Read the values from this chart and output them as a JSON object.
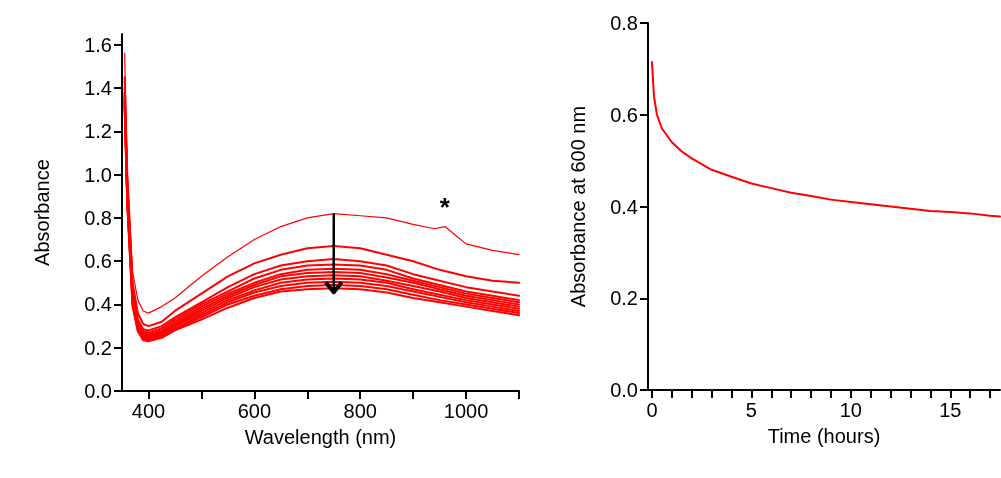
{
  "chart_data": [
    {
      "type": "line",
      "xlabel": "Wavelength (nm)",
      "ylabel": "Absorbance",
      "x": [
        355,
        360,
        370,
        380,
        390,
        400,
        425,
        450,
        500,
        550,
        600,
        650,
        700,
        750,
        800,
        850,
        900,
        950,
        1000,
        1050,
        1100
      ],
      "series": [
        {
          "color": "#ff0000",
          "x": [
            355,
            360,
            370,
            380,
            390,
            400,
            425,
            450,
            500,
            550,
            600,
            650,
            700,
            750,
            800,
            850,
            900,
            940,
            960,
            980,
            1000,
            1050,
            1100
          ],
          "values": [
            1.56,
            1.0,
            0.55,
            0.42,
            0.37,
            0.36,
            0.39,
            0.43,
            0.53,
            0.62,
            0.7,
            0.76,
            0.8,
            0.82,
            0.81,
            0.8,
            0.77,
            0.75,
            0.76,
            0.72,
            0.68,
            0.65,
            0.63
          ]
        },
        {
          "color": "#ff0000",
          "values": [
            1.45,
            1.0,
            0.5,
            0.36,
            0.31,
            0.3,
            0.32,
            0.37,
            0.45,
            0.53,
            0.59,
            0.63,
            0.66,
            0.67,
            0.66,
            0.63,
            0.6,
            0.56,
            0.53,
            0.51,
            0.5
          ]
        },
        {
          "color": "#ff0000",
          "values": [
            1.4,
            0.95,
            0.47,
            0.33,
            0.285,
            0.28,
            0.3,
            0.34,
            0.41,
            0.48,
            0.54,
            0.58,
            0.6,
            0.61,
            0.6,
            0.58,
            0.54,
            0.51,
            0.48,
            0.46,
            0.44
          ]
        },
        {
          "color": "#ff0000",
          "values": [
            1.38,
            0.93,
            0.46,
            0.32,
            0.275,
            0.27,
            0.29,
            0.33,
            0.4,
            0.46,
            0.52,
            0.56,
            0.58,
            0.585,
            0.58,
            0.56,
            0.52,
            0.49,
            0.46,
            0.44,
            0.42
          ]
        },
        {
          "color": "#ff0000",
          "values": [
            1.37,
            0.92,
            0.45,
            0.31,
            0.267,
            0.262,
            0.28,
            0.32,
            0.39,
            0.45,
            0.5,
            0.54,
            0.56,
            0.565,
            0.56,
            0.54,
            0.51,
            0.48,
            0.45,
            0.43,
            0.41
          ]
        },
        {
          "color": "#ff0000",
          "values": [
            1.36,
            0.91,
            0.44,
            0.3,
            0.26,
            0.255,
            0.273,
            0.31,
            0.38,
            0.44,
            0.49,
            0.53,
            0.545,
            0.55,
            0.545,
            0.525,
            0.5,
            0.47,
            0.44,
            0.42,
            0.4
          ]
        },
        {
          "color": "#ff0000",
          "values": [
            1.35,
            0.9,
            0.43,
            0.295,
            0.255,
            0.25,
            0.268,
            0.305,
            0.37,
            0.43,
            0.48,
            0.515,
            0.53,
            0.535,
            0.53,
            0.51,
            0.485,
            0.46,
            0.43,
            0.41,
            0.39
          ]
        },
        {
          "color": "#ff0000",
          "values": [
            1.34,
            0.89,
            0.42,
            0.29,
            0.25,
            0.245,
            0.262,
            0.3,
            0.36,
            0.42,
            0.465,
            0.5,
            0.515,
            0.52,
            0.515,
            0.5,
            0.47,
            0.445,
            0.42,
            0.4,
            0.38
          ]
        },
        {
          "color": "#ff0000",
          "values": [
            1.33,
            0.88,
            0.41,
            0.285,
            0.245,
            0.24,
            0.257,
            0.29,
            0.35,
            0.41,
            0.455,
            0.485,
            0.5,
            0.505,
            0.5,
            0.485,
            0.46,
            0.435,
            0.41,
            0.39,
            0.37
          ]
        },
        {
          "color": "#ff0000",
          "values": [
            1.32,
            0.87,
            0.4,
            0.28,
            0.24,
            0.235,
            0.252,
            0.285,
            0.34,
            0.4,
            0.44,
            0.47,
            0.485,
            0.49,
            0.485,
            0.47,
            0.445,
            0.42,
            0.4,
            0.38,
            0.36
          ]
        },
        {
          "color": "#ff0000",
          "values": [
            1.31,
            0.86,
            0.39,
            0.275,
            0.235,
            0.23,
            0.246,
            0.28,
            0.33,
            0.385,
            0.43,
            0.46,
            0.47,
            0.475,
            0.47,
            0.455,
            0.43,
            0.41,
            0.39,
            0.37,
            0.35
          ]
        }
      ],
      "annotations": [
        {
          "text": "*",
          "x": 960,
          "y": 0.76
        }
      ],
      "xlim": [
        350,
        1100
      ],
      "xticks": [
        400,
        {
          "value": 500,
          "label": null
        },
        600,
        {
          "value": 700,
          "label": null
        },
        800,
        {
          "value": 900,
          "label": null
        },
        1000,
        {
          "value": 1100,
          "label": null
        }
      ],
      "ylim": [
        0,
        1.65
      ],
      "yticks": [
        {
          "value": 0,
          "label": "0.0"
        },
        {
          "value": 0.2,
          "label": "0.2"
        },
        {
          "value": 0.4,
          "label": "0.4"
        },
        {
          "value": 0.6,
          "label": "0.6"
        },
        {
          "value": 0.8,
          "label": "0.8"
        },
        {
          "value": 1,
          "label": "1.0"
        },
        {
          "value": 1.2,
          "label": "1.2"
        },
        {
          "value": 1.4,
          "label": "1.4"
        },
        {
          "value": 1.6,
          "label": "1.6"
        }
      ],
      "grid": false,
      "marker": "none",
      "line_style": "solid"
    },
    {
      "type": "line",
      "xlabel": "Time (hours)",
      "ylabel": "Absorbance at 600 nm",
      "x": [
        0,
        0.1,
        0.25,
        0.5,
        1,
        1.5,
        2,
        3,
        4,
        5,
        6,
        7,
        8,
        9,
        10,
        11,
        12,
        13,
        14,
        15,
        16,
        17,
        17.5
      ],
      "series": [
        {
          "color": "#ff0000",
          "values": [
            0.715,
            0.64,
            0.6,
            0.57,
            0.54,
            0.52,
            0.505,
            0.48,
            0.465,
            0.45,
            0.44,
            0.43,
            0.423,
            0.415,
            0.41,
            0.405,
            0.4,
            0.395,
            0.39,
            0.388,
            0.385,
            0.38,
            0.378
          ]
        }
      ],
      "xlim": [
        -0.2,
        17.5
      ],
      "xticks": [
        0,
        {
          "value": 1,
          "label": null
        },
        {
          "value": 2,
          "label": null
        },
        {
          "value": 3,
          "label": null
        },
        {
          "value": 4,
          "label": null
        },
        5,
        {
          "value": 6,
          "label": null
        },
        {
          "value": 7,
          "label": null
        },
        {
          "value": 8,
          "label": null
        },
        {
          "value": 9,
          "label": null
        },
        10,
        {
          "value": 11,
          "label": null
        },
        {
          "value": 12,
          "label": null
        },
        {
          "value": 13,
          "label": null
        },
        {
          "value": 14,
          "label": null
        },
        15,
        {
          "value": 16,
          "label": null
        },
        {
          "value": 17,
          "label": null
        }
      ],
      "ylim": [
        0,
        0.8
      ],
      "yticks": [
        {
          "value": 0,
          "label": "0.0"
        },
        {
          "value": 0.2,
          "label": "0.2"
        },
        {
          "value": 0.4,
          "label": "0.4"
        },
        {
          "value": 0.6,
          "label": "0.6"
        },
        {
          "value": 0.8,
          "label": "0.8"
        }
      ],
      "grid": false,
      "marker": "none",
      "line_style": "solid"
    }
  ]
}
